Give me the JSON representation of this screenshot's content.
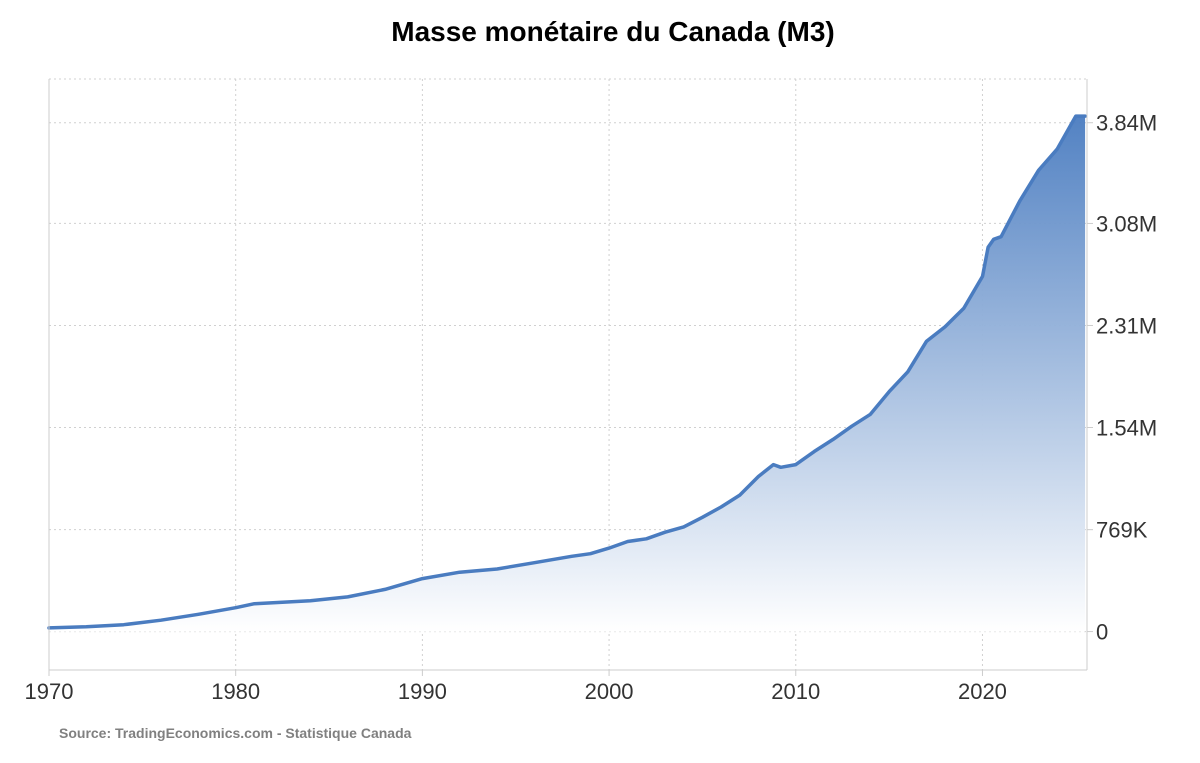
{
  "chart_data": {
    "type": "area",
    "title": "Masse monétaire du Canada (M3)",
    "xlabel": "",
    "ylabel": "",
    "x_tick_labels": [
      "1970",
      "1980",
      "1990",
      "2000",
      "2010",
      "2020"
    ],
    "y_tick_labels": [
      "0",
      "769K",
      "1.54M",
      "2.31M",
      "3.08M",
      "3.84M"
    ],
    "y_tick_values": [
      0,
      769000,
      1540000,
      2310000,
      3080000,
      3840000
    ],
    "xlim": [
      1970,
      2025.6
    ],
    "ylim": [
      -290000,
      4170000
    ],
    "grid": true,
    "y_axis_side": "right",
    "series": [
      {
        "values": [
          {
            "x": 1970.0,
            "y": 28000
          },
          {
            "x": 1972.0,
            "y": 36000
          },
          {
            "x": 1974.0,
            "y": 52000
          },
          {
            "x": 1976.0,
            "y": 86000
          },
          {
            "x": 1978.0,
            "y": 130000
          },
          {
            "x": 1980.0,
            "y": 180000
          },
          {
            "x": 1981.0,
            "y": 210000
          },
          {
            "x": 1982.0,
            "y": 218000
          },
          {
            "x": 1984.0,
            "y": 232000
          },
          {
            "x": 1986.0,
            "y": 262000
          },
          {
            "x": 1988.0,
            "y": 318000
          },
          {
            "x": 1990.0,
            "y": 400000
          },
          {
            "x": 1992.0,
            "y": 448000
          },
          {
            "x": 1994.0,
            "y": 472000
          },
          {
            "x": 1996.0,
            "y": 520000
          },
          {
            "x": 1998.0,
            "y": 568000
          },
          {
            "x": 1999.0,
            "y": 588000
          },
          {
            "x": 2000.0,
            "y": 630000
          },
          {
            "x": 2001.0,
            "y": 680000
          },
          {
            "x": 2002.0,
            "y": 700000
          },
          {
            "x": 2003.0,
            "y": 750000
          },
          {
            "x": 2004.0,
            "y": 790000
          },
          {
            "x": 2005.0,
            "y": 862000
          },
          {
            "x": 2006.0,
            "y": 940000
          },
          {
            "x": 2007.0,
            "y": 1030000
          },
          {
            "x": 2008.0,
            "y": 1170000
          },
          {
            "x": 2008.8,
            "y": 1260000
          },
          {
            "x": 2009.2,
            "y": 1240000
          },
          {
            "x": 2010.0,
            "y": 1260000
          },
          {
            "x": 2011.0,
            "y": 1360000
          },
          {
            "x": 2012.0,
            "y": 1450000
          },
          {
            "x": 2013.0,
            "y": 1550000
          },
          {
            "x": 2014.0,
            "y": 1640000
          },
          {
            "x": 2015.0,
            "y": 1810000
          },
          {
            "x": 2016.0,
            "y": 1960000
          },
          {
            "x": 2017.0,
            "y": 2190000
          },
          {
            "x": 2018.0,
            "y": 2300000
          },
          {
            "x": 2019.0,
            "y": 2440000
          },
          {
            "x": 2020.0,
            "y": 2680000
          },
          {
            "x": 2020.3,
            "y": 2900000
          },
          {
            "x": 2020.6,
            "y": 2960000
          },
          {
            "x": 2021.0,
            "y": 2980000
          },
          {
            "x": 2022.0,
            "y": 3250000
          },
          {
            "x": 2023.0,
            "y": 3480000
          },
          {
            "x": 2024.0,
            "y": 3640000
          },
          {
            "x": 2025.0,
            "y": 3890000
          },
          {
            "x": 2025.5,
            "y": 3890000
          }
        ]
      }
    ]
  },
  "source": "Source: TradingEconomics.com - Statistique Canada",
  "colors": {
    "line": "#4a7cc0",
    "fill_top": "#4a7cc0",
    "fill_bottom": "#ffffff",
    "grid": "#d0d0d0",
    "axis": "#cccccc",
    "tick_text": "#333333"
  }
}
